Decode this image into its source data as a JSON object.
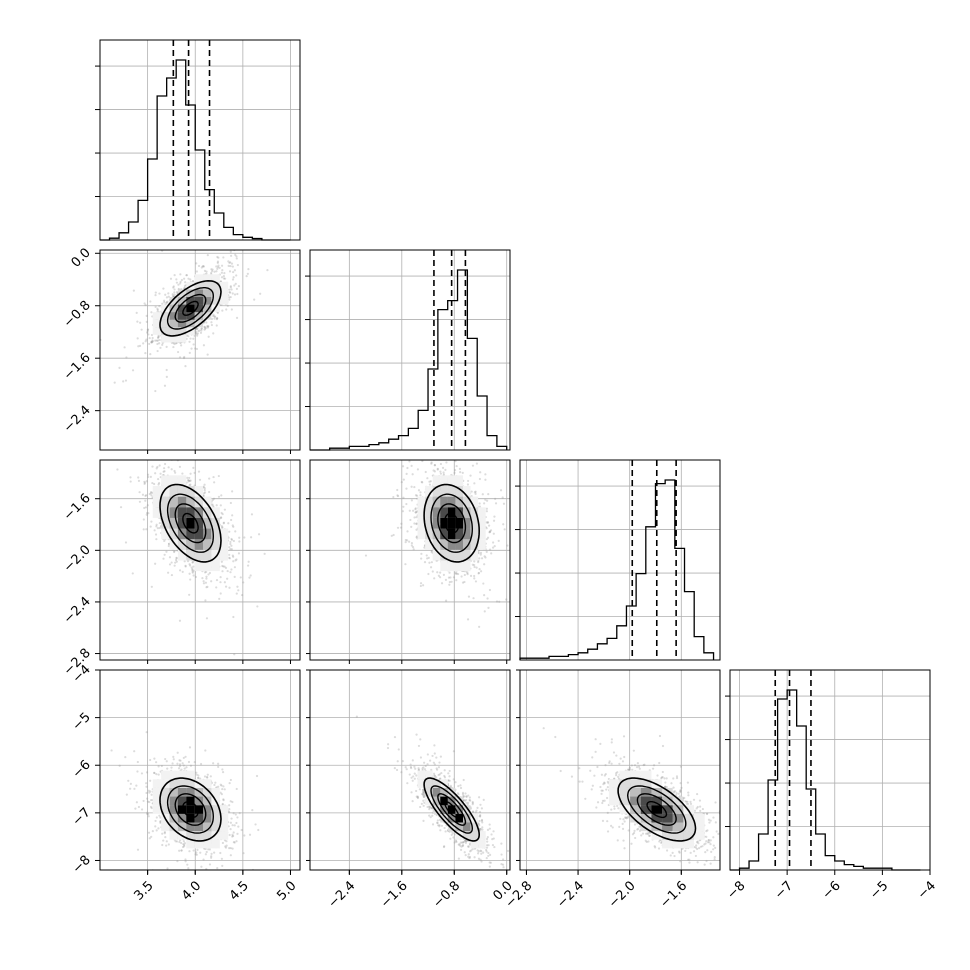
{
  "chart_data": {
    "type": "corner",
    "parameters": [
      {
        "range": [
          3.0,
          5.1
        ],
        "ticks": [
          3.5,
          4.0,
          4.5,
          5.0
        ],
        "tick_labels": [
          "3.5",
          "4.0",
          "4.5",
          "5.0"
        ],
        "quantiles": [
          3.77,
          3.93,
          4.15
        ],
        "mean": 3.95,
        "sd": 0.16
      },
      {
        "range": [
          -3.0,
          0.05
        ],
        "ticks": [
          -2.4,
          -1.6,
          -0.8,
          0.0
        ],
        "tick_labels": [
          "−2.4",
          "−1.6",
          "−0.8",
          "0.0"
        ],
        "quantiles": [
          -1.11,
          -0.84,
          -0.63
        ],
        "mean": -0.84,
        "sd": 0.21
      },
      {
        "range": [
          -2.85,
          -1.3
        ],
        "ticks": [
          -2.8,
          -2.4,
          -2.0,
          -1.6
        ],
        "tick_labels": [
          "−2.8",
          "−2.4",
          "−2.0",
          "−1.6"
        ],
        "quantiles": [
          -1.98,
          -1.79,
          -1.64
        ],
        "mean": -1.79,
        "sd": 0.15
      },
      {
        "range": [
          -8.2,
          -4.0
        ],
        "ticks": [
          -8,
          -7,
          -6,
          -5,
          -4
        ],
        "tick_labels": [
          "−8",
          "−7",
          "−6",
          "−5",
          "−4"
        ],
        "quantiles": [
          -7.25,
          -6.95,
          -6.5
        ],
        "mean": -6.93,
        "sd": 0.33
      }
    ],
    "histograms": [
      {
        "bins": [
          3.0,
          3.1,
          3.2,
          3.3,
          3.4,
          3.5,
          3.6,
          3.7,
          3.8,
          3.9,
          4.0,
          4.1,
          4.2,
          4.3,
          4.4,
          4.5,
          4.6,
          4.7,
          4.8,
          4.9,
          5.0
        ],
        "counts": [
          0.0,
          0.01,
          0.04,
          0.1,
          0.22,
          0.45,
          0.8,
          0.9,
          1.0,
          0.75,
          0.5,
          0.28,
          0.15,
          0.07,
          0.03,
          0.015,
          0.008,
          0.0,
          0.0,
          0.0
        ]
      },
      {
        "bins": [
          -3.0,
          -2.85,
          -2.7,
          -2.55,
          -2.4,
          -2.25,
          -2.1,
          -1.95,
          -1.8,
          -1.65,
          -1.5,
          -1.35,
          -1.2,
          -1.05,
          -0.9,
          -0.75,
          -0.6,
          -0.45,
          -0.3,
          -0.15,
          0.0
        ],
        "counts": [
          0.0,
          0.0,
          0.01,
          0.01,
          0.02,
          0.02,
          0.03,
          0.04,
          0.06,
          0.08,
          0.12,
          0.22,
          0.45,
          0.78,
          0.83,
          1.0,
          0.62,
          0.3,
          0.08,
          0.02
        ]
      },
      {
        "bins": [
          -2.85,
          -2.775,
          -2.7,
          -2.625,
          -2.55,
          -2.475,
          -2.4,
          -2.325,
          -2.25,
          -2.175,
          -2.1,
          -2.025,
          -1.95,
          -1.875,
          -1.8,
          -1.725,
          -1.65,
          -1.575,
          -1.5,
          -1.425,
          -1.35
        ],
        "counts": [
          0.01,
          0.01,
          0.01,
          0.02,
          0.02,
          0.03,
          0.04,
          0.06,
          0.09,
          0.12,
          0.19,
          0.3,
          0.48,
          0.74,
          0.98,
          1.0,
          0.62,
          0.38,
          0.13,
          0.04
        ]
      },
      {
        "bins": [
          -8.2,
          -8.0,
          -7.8,
          -7.6,
          -7.4,
          -7.2,
          -7.0,
          -6.8,
          -6.6,
          -6.4,
          -6.2,
          -6.0,
          -5.8,
          -5.6,
          -5.4,
          -5.2,
          -5.0,
          -4.8,
          -4.6,
          -4.4,
          -4.2
        ],
        "counts": [
          0.0,
          0.01,
          0.05,
          0.2,
          0.5,
          0.95,
          1.0,
          0.8,
          0.45,
          0.2,
          0.08,
          0.05,
          0.03,
          0.02,
          0.01,
          0.01,
          0.01,
          0.0,
          0.0,
          0.0
        ]
      }
    ],
    "correlations": [
      [
        1.0,
        0.6,
        -0.45,
        -0.3
      ],
      [
        0.6,
        1.0,
        -0.2,
        -0.8
      ],
      [
        -0.45,
        -0.2,
        1.0,
        -0.6
      ],
      [
        -0.3,
        -0.8,
        -0.6,
        1.0
      ]
    ],
    "grid": true,
    "xlabels": [
      "",
      "",
      "",
      ""
    ],
    "ylabels": [
      "",
      "",
      "",
      ""
    ]
  }
}
